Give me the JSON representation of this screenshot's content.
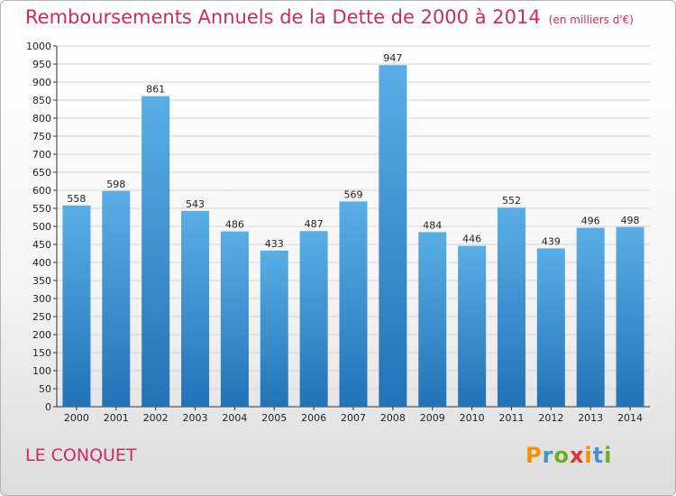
{
  "header": {
    "title": "Remboursements Annuels de la Dette de 2000 à 2014",
    "unit": "(en milliers d'€)"
  },
  "footer": {
    "commune": "LE CONQUET",
    "logo_letters": [
      "P",
      "r",
      "o",
      "x",
      "i",
      "t",
      "i"
    ],
    "logo_colors": [
      "#f39200",
      "#4a8fd4",
      "#6ab023",
      "#e6332a",
      "#f39200",
      "#4a8fd4",
      "#6ab023"
    ]
  },
  "colors": {
    "title": "#cc2a66",
    "bar_top": "#5aaee6",
    "bar_bottom": "#2273b6",
    "grid": "#d4d4d4"
  },
  "chart_data": {
    "type": "bar",
    "title": "Remboursements Annuels de la Dette de 2000 à 2014",
    "ylabel": "",
    "xlabel": "",
    "ylim": [
      0,
      1000
    ],
    "ytick_step": 50,
    "grid": true,
    "categories": [
      "2000",
      "2001",
      "2002",
      "2003",
      "2004",
      "2005",
      "2006",
      "2007",
      "2008",
      "2009",
      "2010",
      "2011",
      "2012",
      "2013",
      "2014"
    ],
    "values": [
      558,
      598,
      861,
      543,
      486,
      433,
      487,
      569,
      947,
      484,
      446,
      552,
      439,
      496,
      498
    ]
  }
}
